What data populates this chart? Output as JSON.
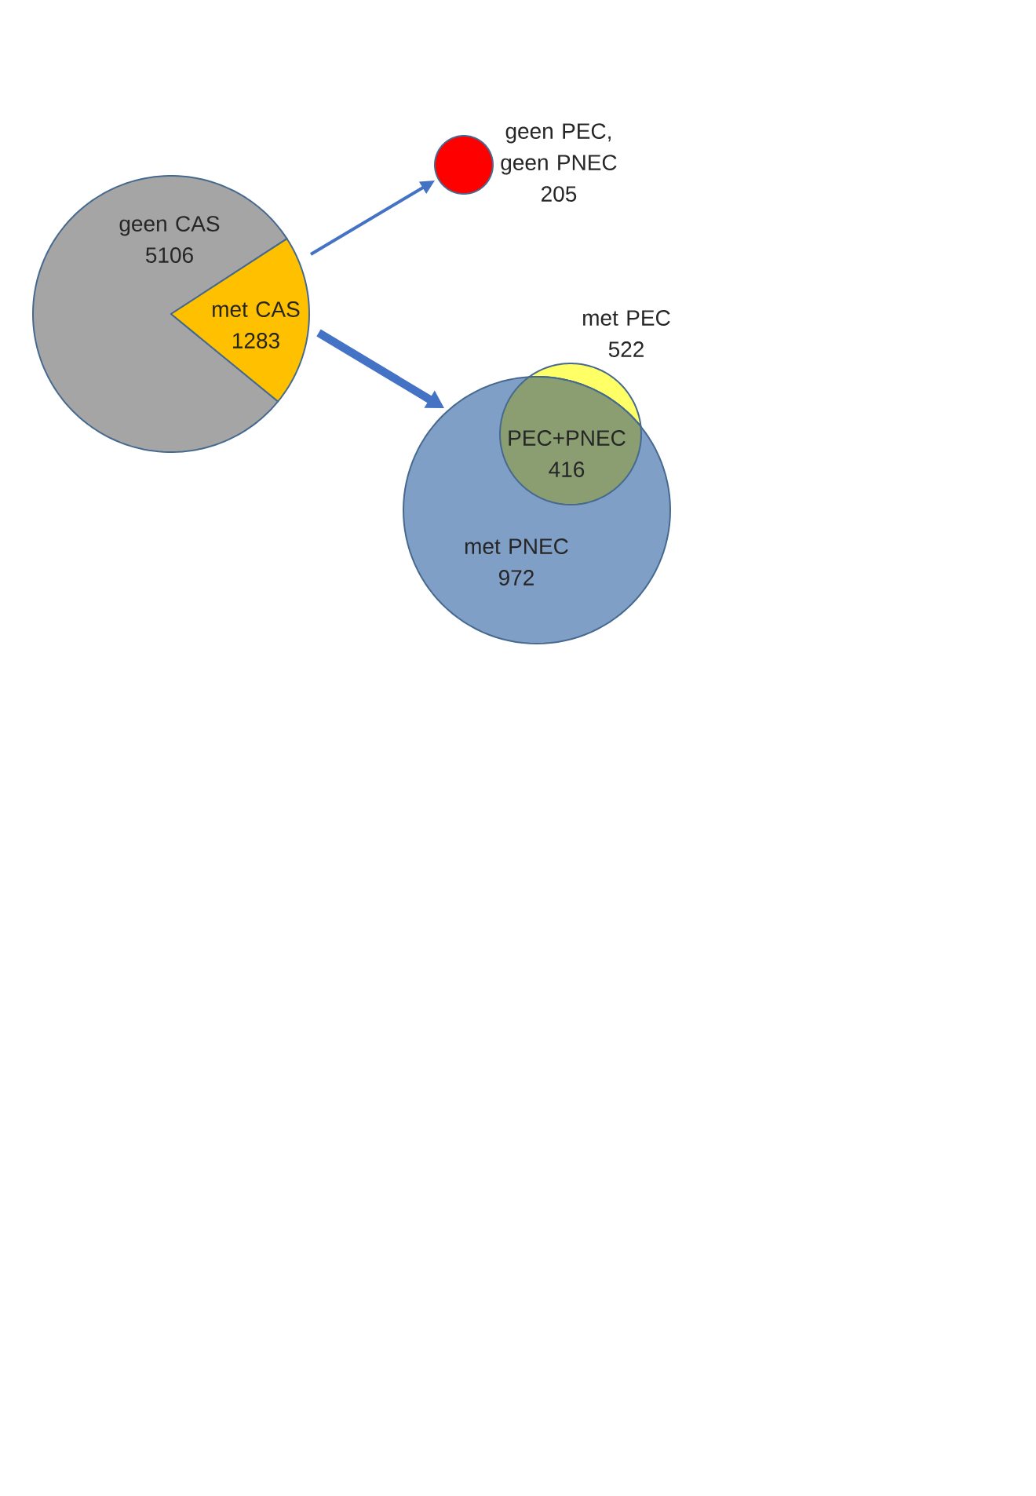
{
  "chart_data": [
    {
      "type": "pie",
      "categories": [
        "geen CAS",
        "met CAS"
      ],
      "values": [
        5106,
        1283
      ],
      "colors": [
        "#a5a5a5",
        "#ffc000"
      ],
      "data_labels": true
    },
    {
      "type": "other",
      "categories": [
        "geen PEC, geen PNEC",
        "met PEC",
        "met PNEC",
        "PEC+PNEC"
      ],
      "values": [
        205,
        522,
        972,
        416
      ],
      "colors": [
        "#ff0000",
        "#ffff66",
        "#809fc6",
        "#8a9e72"
      ],
      "data_labels": true
    }
  ]
}
